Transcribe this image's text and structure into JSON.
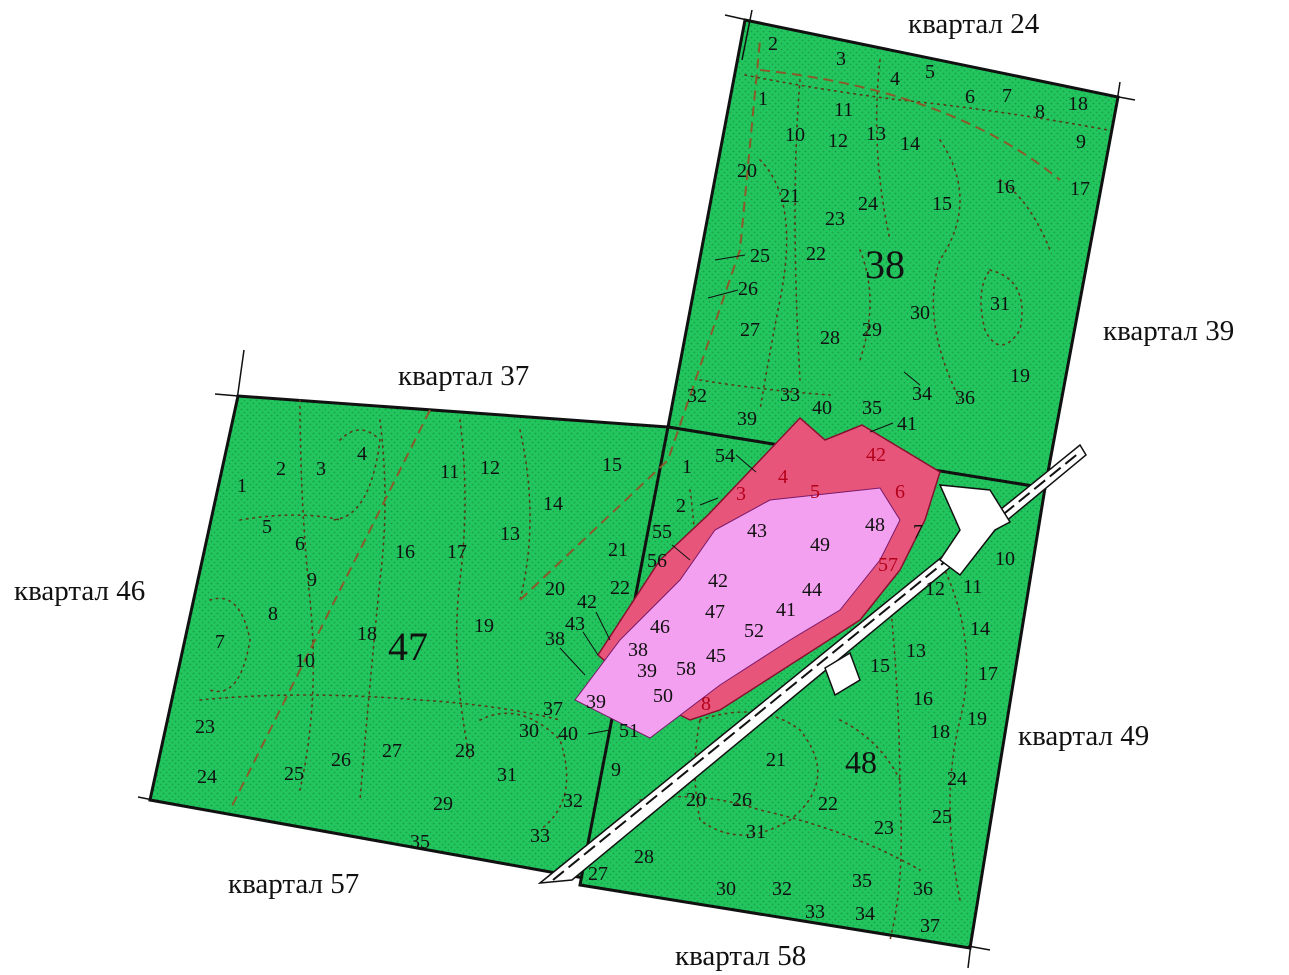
{
  "colors": {
    "forest": "#22c55e",
    "forest_dots": "#0f7a2e",
    "allocation_dark": "#e8557a",
    "allocation_light": "#f4a0f0",
    "boundary": "#111111",
    "road_fill": "#ffffff",
    "dashed_line": "#8a5a2a"
  },
  "neighbor_labels": {
    "q24": "квартал 24",
    "q39": "квартал 39",
    "q37": "квартал 37",
    "q46": "квартал 46",
    "q49": "квартал 49",
    "q57": "квартал 57",
    "q58": "квартал 58"
  },
  "quarters": {
    "q38": "38",
    "q47": "47",
    "q48": "48"
  },
  "plots": {
    "q38": [
      "1",
      "2",
      "3",
      "4",
      "5",
      "6",
      "7",
      "8",
      "9",
      "10",
      "11",
      "12",
      "13",
      "14",
      "15",
      "16",
      "17",
      "18",
      "19",
      "20",
      "21",
      "22",
      "23",
      "24",
      "25",
      "26",
      "27",
      "28",
      "29",
      "30",
      "31",
      "32",
      "33",
      "34",
      "35",
      "36",
      "39",
      "40",
      "41",
      "42"
    ],
    "q47": [
      "1",
      "2",
      "3",
      "4",
      "5",
      "6",
      "7",
      "8",
      "9",
      "10",
      "11",
      "12",
      "13",
      "14",
      "15",
      "16",
      "17",
      "18",
      "19",
      "20",
      "21",
      "22",
      "23",
      "24",
      "25",
      "26",
      "27",
      "28",
      "29",
      "30",
      "31",
      "32",
      "33",
      "35",
      "37",
      "38",
      "39",
      "40",
      "42",
      "43"
    ],
    "q48": [
      "1",
      "2",
      "3",
      "4",
      "5",
      "6",
      "7",
      "8",
      "9",
      "10",
      "11",
      "12",
      "13",
      "14",
      "15",
      "16",
      "17",
      "18",
      "19",
      "20",
      "21",
      "22",
      "23",
      "24",
      "25",
      "26",
      "27",
      "28",
      "30",
      "31",
      "32",
      "33",
      "34",
      "35",
      "36",
      "37",
      "38",
      "39",
      "41",
      "42",
      "43",
      "44",
      "45",
      "46",
      "47",
      "48",
      "49",
      "50",
      "51",
      "52",
      "54",
      "55",
      "56",
      "57",
      "58"
    ]
  }
}
